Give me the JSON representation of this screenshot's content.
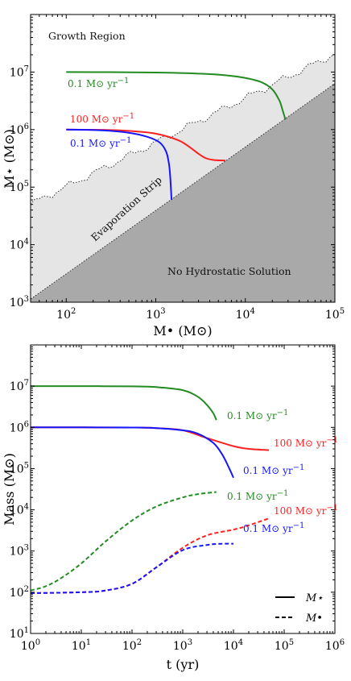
{
  "chart_data": [
    {
      "type": "line",
      "xlabel": "M• (M⊙)",
      "ylabel": "M⋆ (M⊙)",
      "xscale": "log",
      "yscale": "log",
      "xlim": [
        40,
        100000
      ],
      "ylim": [
        1000,
        100000000
      ],
      "x_ticks": [
        "10^2",
        "10^3",
        "10^4",
        "10^5"
      ],
      "y_ticks": [
        "10^3",
        "10^4",
        "10^5",
        "10^6",
        "10^7"
      ],
      "regions": {
        "growth": "Growth Region",
        "evaporation": "Evaporation Strip",
        "no_solution": "No Hydrostatic Solution"
      },
      "series": [
        {
          "color": "#228B22",
          "x": [
            100,
            300,
            1000,
            3000,
            6000,
            10000,
            15000,
            20000,
            24000,
            26000,
            28000
          ],
          "y": [
            10000000,
            9950000,
            9800000,
            9400000,
            8800000,
            7900000,
            6700000,
            5000000,
            3200000,
            2200000,
            1500000
          ]
        },
        {
          "color": "#FF2020",
          "x": [
            100,
            250,
            500,
            1000,
            1800,
            2500,
            3000,
            3600,
            4500,
            6000
          ],
          "y": [
            1000000,
            990000,
            950000,
            850000,
            650000,
            470000,
            380000,
            320000,
            295000,
            290000
          ]
        },
        {
          "color": "#1515FF",
          "x": [
            100,
            250,
            500,
            800,
            1100,
            1300,
            1400,
            1450,
            1500
          ],
          "y": [
            1000000,
            970000,
            880000,
            750000,
            600000,
            420000,
            260000,
            150000,
            60000
          ]
        }
      ],
      "annotations": [
        {
          "rate": "0.1",
          "unit": "M⊙ yr",
          "exp": "−1",
          "color": "#228B22"
        },
        {
          "rate": "100",
          "unit": "M⊙ yr",
          "exp": "−1",
          "color": "#FF2020"
        },
        {
          "rate": "0.1",
          "unit": "M⊙ yr",
          "exp": "−1",
          "color": "#1515FF"
        }
      ]
    },
    {
      "type": "line",
      "xlabel": "t (yr)",
      "ylabel": "Mass (M⊙)",
      "xscale": "log",
      "yscale": "log",
      "xlim": [
        1,
        1000000
      ],
      "ylim": [
        10,
        100000000
      ],
      "x_ticks": [
        "10^0",
        "10^1",
        "10^2",
        "10^3",
        "10^4",
        "10^5",
        "10^6"
      ],
      "y_ticks": [
        "10^1",
        "10^2",
        "10^3",
        "10^4",
        "10^5",
        "10^6",
        "10^7"
      ],
      "legend": {
        "position": "bottom-right",
        "solid": "M⋆",
        "dashed": "M•"
      },
      "series": [
        {
          "color": "#228B22",
          "style": "solid",
          "t": [
            1,
            10,
            100,
            300,
            1000,
            2000,
            3000,
            4000,
            4600
          ],
          "y": [
            10000000,
            10000000,
            9900000,
            9500000,
            8000000,
            5500000,
            3500000,
            2200000,
            1500000
          ]
        },
        {
          "color": "#FF2020",
          "style": "solid",
          "t": [
            1,
            10,
            100,
            300,
            1000,
            3000,
            10000,
            20000,
            50000
          ],
          "y": [
            1000000,
            1000000,
            990000,
            960000,
            850000,
            550000,
            350000,
            300000,
            280000
          ]
        },
        {
          "color": "#1515FF",
          "style": "solid",
          "t": [
            1,
            10,
            100,
            300,
            1000,
            2000,
            4000,
            6000,
            8000,
            10000
          ],
          "y": [
            1000000,
            1000000,
            990000,
            960000,
            850000,
            700000,
            420000,
            220000,
            110000,
            60000
          ]
        },
        {
          "color": "#228B22",
          "style": "dashed",
          "t": [
            1,
            2,
            4,
            10,
            30,
            100,
            300,
            1000,
            2000,
            4600
          ],
          "y": [
            110,
            140,
            220,
            500,
            1700,
            5500,
            12000,
            20000,
            24000,
            27000
          ]
        },
        {
          "color": "#FF2020",
          "style": "dashed",
          "t": [
            1,
            10,
            30,
            100,
            300,
            1000,
            3000,
            10000,
            20000,
            50000
          ],
          "y": [
            95,
            100,
            110,
            160,
            400,
            1200,
            2400,
            3300,
            4200,
            6200
          ]
        },
        {
          "color": "#1515FF",
          "style": "dashed",
          "t": [
            1,
            10,
            30,
            100,
            300,
            1000,
            3000,
            6000,
            10000
          ],
          "y": [
            95,
            100,
            110,
            160,
            400,
            1050,
            1400,
            1500,
            1500
          ]
        }
      ],
      "annotations": [
        {
          "rate": "0.1",
          "unit": "M⊙ yr",
          "exp": "−1",
          "color": "#228B22"
        },
        {
          "rate": "100",
          "unit": "M⊙ yr",
          "exp": "−1",
          "color": "#FF2020"
        },
        {
          "rate": "0.1",
          "unit": "M⊙ yr",
          "exp": "−1",
          "color": "#1515FF"
        },
        {
          "rate": "0.1",
          "unit": "M⊙ yr",
          "exp": "−1",
          "color": "#228B22"
        },
        {
          "rate": "100",
          "unit": "M⊙ yr",
          "exp": "−1",
          "color": "#FF2020"
        },
        {
          "rate": "0.1",
          "unit": "M⊙ yr",
          "exp": "−1",
          "color": "#1515FF"
        }
      ]
    }
  ]
}
